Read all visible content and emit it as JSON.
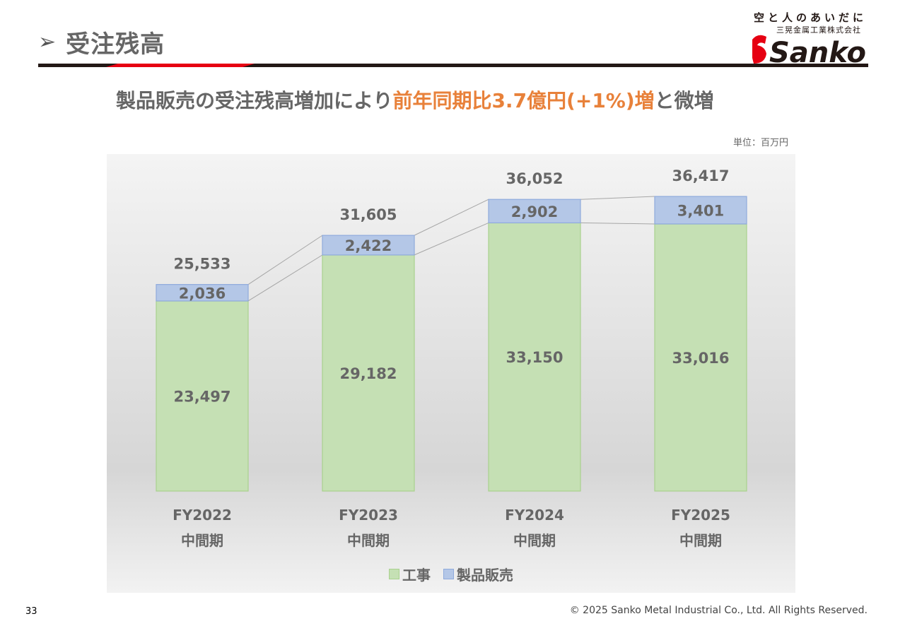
{
  "header": {
    "arrow": "➢",
    "title": "受注残高",
    "logo": {
      "slogan": "空と人のあいだに",
      "company": "三晃金属工業株式会社",
      "brand": "Sanko"
    }
  },
  "headline": {
    "part1": "製品販売の受注残高増加により",
    "highlight": "前年同期比3.7億円(+1%)増",
    "part2": "と微増"
  },
  "unit_label": "単位：百万円",
  "chart_data": {
    "type": "bar",
    "stacked": true,
    "categories": [
      "FY2022 中間期",
      "FY2023 中間期",
      "FY2024 中間期",
      "FY2025 中間期"
    ],
    "category_lines": [
      [
        "FY2022",
        "中間期"
      ],
      [
        "FY2023",
        "中間期"
      ],
      [
        "FY2024",
        "中間期"
      ],
      [
        "FY2025",
        "中間期"
      ]
    ],
    "series": [
      {
        "name": "工事",
        "values": [
          23497,
          29182,
          33150,
          33016
        ],
        "color": "#c5e0b4",
        "border": "#a9d18e"
      },
      {
        "name": "製品販売",
        "values": [
          2036,
          2422,
          2902,
          3401
        ],
        "color": "#b4c7e7",
        "border": "#8faadc"
      }
    ],
    "totals": [
      25533,
      31605,
      36052,
      36417
    ],
    "series_labels": [
      [
        "23,497",
        "29,182",
        "33,150",
        "33,016"
      ],
      [
        "2,036",
        "2,422",
        "2,902",
        "3,401"
      ]
    ],
    "total_labels": [
      "25,533",
      "31,605",
      "36,052",
      "36,417"
    ],
    "legend_position": "bottom",
    "grid": false,
    "connector_lines": true
  },
  "footer": {
    "page_number": "33",
    "copyright": "© 2025 Sanko Metal Industrial Co., Ltd. All Rights Reserved."
  }
}
